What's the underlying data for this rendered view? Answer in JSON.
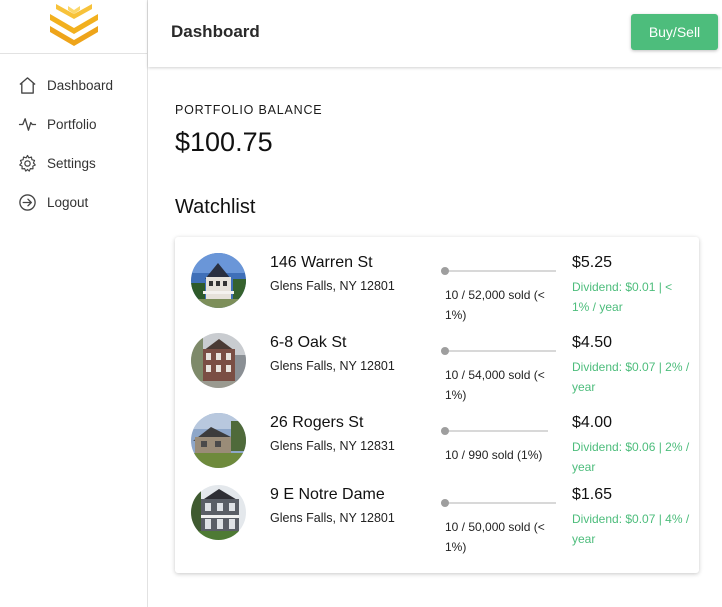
{
  "header": {
    "title": "Dashboard",
    "buy_sell_label": "Buy/Sell"
  },
  "sidebar": {
    "items": [
      {
        "label": "Dashboard",
        "icon": "home-icon"
      },
      {
        "label": "Portfolio",
        "icon": "activity-icon"
      },
      {
        "label": "Settings",
        "icon": "gear-icon"
      },
      {
        "label": "Logout",
        "icon": "logout-icon"
      }
    ]
  },
  "portfolio": {
    "label": "PORTFOLIO BALANCE",
    "value": "$100.75"
  },
  "watchlist": {
    "title": "Watchlist",
    "items": [
      {
        "address": "146 Warren St",
        "city": "Glens Falls, NY 12801",
        "sold": "10 / 52,000 sold (< 1%)",
        "price": "$5.25",
        "dividend": "Dividend: $0.01 | < 1% / year",
        "progress_fraction": 0.0002
      },
      {
        "address": "6-8 Oak St",
        "city": "Glens Falls, NY 12801",
        "sold": "10 / 54,000 sold (< 1%)",
        "price": "$4.50",
        "dividend": "Dividend: $0.07 | 2% / year",
        "progress_fraction": 0.0002
      },
      {
        "address": "26 Rogers St",
        "city": "Glens Falls, NY 12831",
        "sold": "10 / 990 sold (1%)",
        "price": "$4.00",
        "dividend": "Dividend: $0.06 | 2% / year",
        "progress_fraction": 0.01
      },
      {
        "address": "9 E Notre Dame",
        "city": "Glens Falls, NY 12801",
        "sold": "10 / 50,000 sold (< 1%)",
        "price": "$1.65",
        "dividend": "Dividend: $0.07 | 4% / year",
        "progress_fraction": 0.0002
      }
    ]
  },
  "colors": {
    "accent_green": "#4dbd7c",
    "logo_gold": "#f2b01e"
  }
}
